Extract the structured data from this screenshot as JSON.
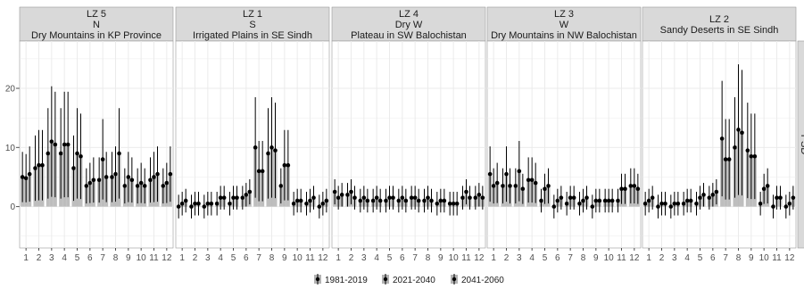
{
  "chart_data": {
    "type": "bar",
    "title": "",
    "xlabel": "",
    "ylabel": "",
    "side_strip_label": "PSD",
    "ylim": [
      -7,
      28
    ],
    "y_ticks": [
      0,
      10,
      20
    ],
    "categories": [
      "1",
      "2",
      "3",
      "4",
      "5",
      "6",
      "7",
      "8",
      "9",
      "10",
      "11",
      "12"
    ],
    "series_names": [
      "1981-2019",
      "2021-2040",
      "2041-2060"
    ],
    "colors": {
      "bar": "#b3b3b3",
      "point": "#000000",
      "errorbar": "#000000",
      "strip_fill": "#d9d9d9",
      "panel_fill": "#ffffff",
      "grid": "#ebebeb"
    },
    "legend_position": "bottom",
    "panels": [
      {
        "strip": [
          "LZ 5",
          "N",
          "Dry Mountains in KP Province"
        ],
        "series": [
          {
            "name": "1981-2019",
            "values": [
              5.0,
              6.5,
              9.0,
              9.0,
              6.5,
              3.5,
              4.5,
              5.0,
              3.5,
              3.5,
              4.5,
              3.5
            ]
          },
          {
            "name": "2021-2040",
            "values": [
              4.8,
              7.0,
              11.0,
              10.5,
              9.0,
              4.0,
              8.0,
              5.5,
              5.0,
              4.0,
              5.0,
              4.0
            ]
          },
          {
            "name": "2041-2060",
            "values": [
              5.5,
              7.0,
              10.5,
              10.5,
              8.5,
              4.5,
              5.0,
              9.0,
              4.5,
              3.5,
              5.5,
              5.5
            ]
          }
        ]
      },
      {
        "strip": [
          "LZ 1",
          "S",
          "Irrigated Plains in SE Sindh"
        ],
        "series": [
          {
            "name": "1981-2019",
            "values": [
              0.0,
              0.0,
              0.0,
              0.5,
              0.5,
              1.5,
              10.0,
              9.0,
              3.5,
              0.5,
              0.5,
              0.0
            ]
          },
          {
            "name": "2021-2040",
            "values": [
              0.5,
              0.5,
              0.5,
              1.5,
              1.5,
              2.0,
              6.0,
              10.0,
              7.0,
              1.0,
              1.0,
              0.5
            ]
          },
          {
            "name": "2041-2060",
            "values": [
              1.0,
              0.5,
              0.5,
              1.5,
              1.5,
              2.5,
              6.0,
              9.5,
              7.0,
              1.0,
              1.5,
              1.0
            ]
          }
        ]
      },
      {
        "strip": [
          "LZ 4",
          "Dry W",
          "Plateau in SW Balochistan"
        ],
        "series": [
          {
            "name": "1981-2019",
            "values": [
              2.5,
              2.0,
              1.0,
              1.0,
              1.0,
              1.0,
              1.5,
              1.0,
              0.5,
              0.5,
              1.5,
              1.5
            ]
          },
          {
            "name": "2021-2040",
            "values": [
              1.5,
              2.5,
              1.5,
              1.5,
              1.5,
              1.5,
              1.5,
              1.5,
              1.0,
              0.5,
              2.5,
              2.0
            ]
          },
          {
            "name": "2041-2060",
            "values": [
              2.0,
              1.5,
              1.0,
              1.0,
              1.5,
              1.0,
              1.0,
              1.0,
              1.0,
              0.5,
              1.5,
              1.5
            ]
          }
        ]
      },
      {
        "strip": [
          "LZ 3",
          "W",
          "Dry Mountains in NW Balochistan"
        ],
        "series": [
          {
            "name": "1981-2019",
            "values": [
              5.5,
              3.5,
              3.5,
              4.5,
              1.0,
              0.0,
              0.5,
              0.5,
              0.0,
              1.0,
              1.0,
              3.5
            ]
          },
          {
            "name": "2021-2040",
            "values": [
              3.5,
              5.5,
              6.0,
              4.5,
              3.0,
              1.0,
              1.5,
              1.0,
              1.0,
              1.0,
              3.0,
              3.5
            ]
          },
          {
            "name": "2041-2060",
            "values": [
              4.0,
              3.5,
              3.0,
              4.0,
              3.5,
              1.5,
              1.5,
              1.5,
              1.0,
              1.0,
              3.0,
              3.0
            ]
          }
        ]
      },
      {
        "strip": [
          "LZ 2",
          "Sandy Deserts in SE Sindh"
        ],
        "series": [
          {
            "name": "1981-2019",
            "values": [
              0.5,
              0.0,
              0.0,
              0.5,
              0.5,
              1.5,
              11.5,
              10.0,
              9.5,
              0.5,
              0.0,
              0.0
            ]
          },
          {
            "name": "2021-2040",
            "values": [
              1.0,
              0.5,
              0.5,
              1.0,
              1.5,
              2.0,
              8.0,
              13.0,
              8.5,
              3.0,
              1.5,
              0.5
            ]
          },
          {
            "name": "2041-2060",
            "values": [
              1.5,
              0.5,
              0.5,
              1.0,
              2.0,
              2.5,
              8.0,
              12.5,
              8.5,
              3.5,
              1.5,
              1.5
            ]
          }
        ]
      }
    ]
  }
}
